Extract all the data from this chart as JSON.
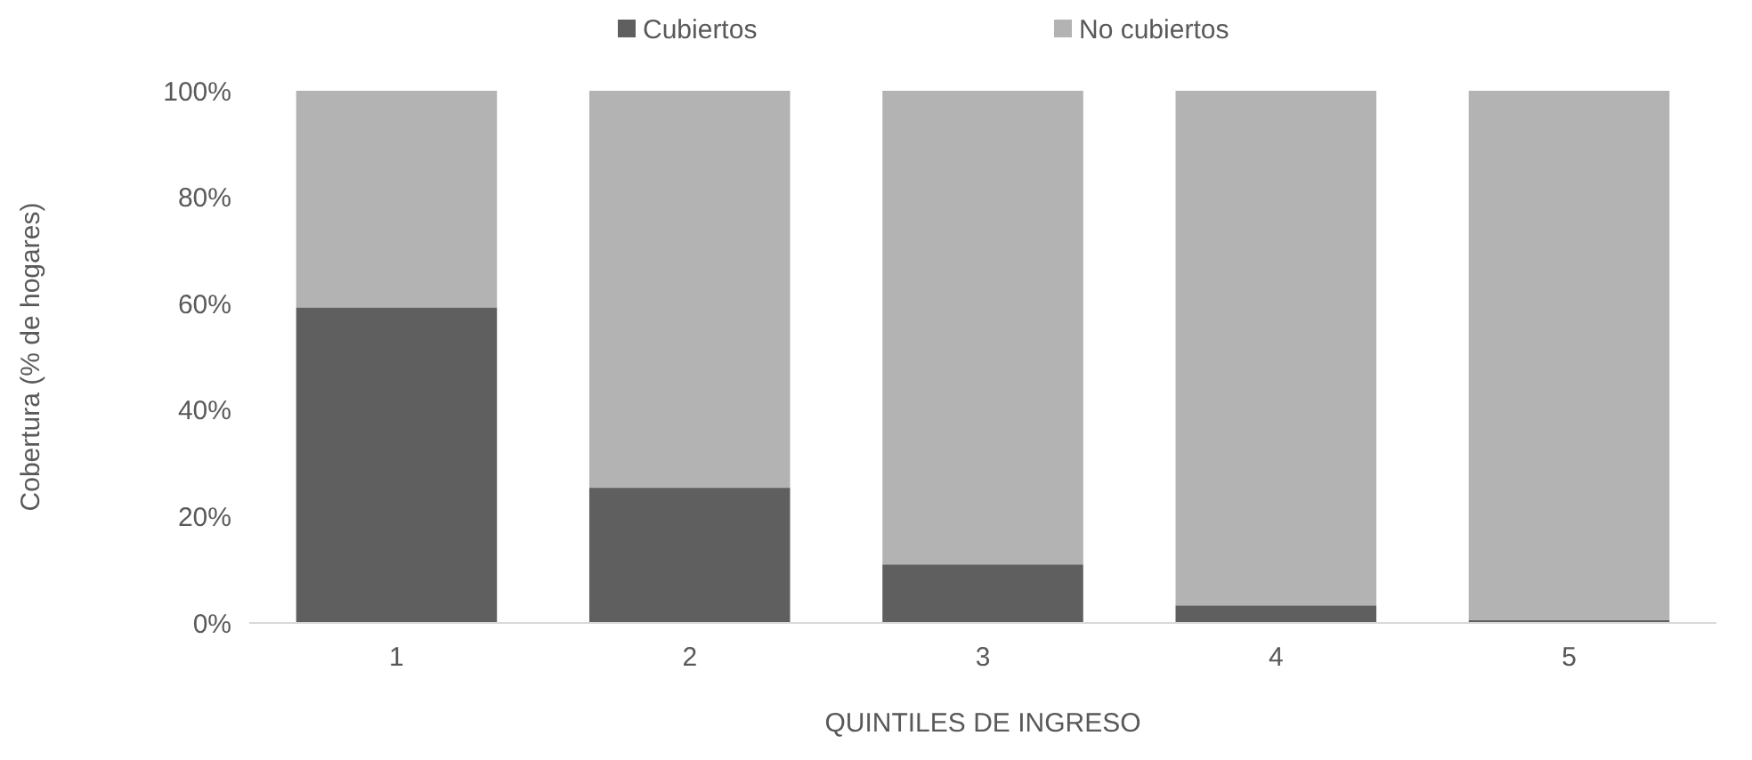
{
  "chart_data": {
    "type": "bar",
    "stacked": true,
    "xlabel": "QUINTILES DE INGRESO",
    "ylabel": "Cobertura (% de hogares)",
    "categories": [
      "1",
      "2",
      "3",
      "4",
      "5"
    ],
    "series": [
      {
        "name": "Cubiertos",
        "color": "#5f5f5f",
        "values": [
          59.3,
          25.4,
          11.0,
          3.3,
          0.5
        ]
      },
      {
        "name": "No cubiertos",
        "color": "#b3b3b3",
        "values": [
          40.7,
          74.6,
          89.0,
          96.7,
          99.5
        ]
      }
    ],
    "ylim": [
      0,
      100
    ],
    "yticks": [
      {
        "value": 0,
        "label": "0%"
      },
      {
        "value": 20,
        "label": "20%"
      },
      {
        "value": 40,
        "label": "40%"
      },
      {
        "value": 60,
        "label": "60%"
      },
      {
        "value": 80,
        "label": "80%"
      },
      {
        "value": 100,
        "label": "100%"
      }
    ],
    "grid": false,
    "legend": "top"
  }
}
